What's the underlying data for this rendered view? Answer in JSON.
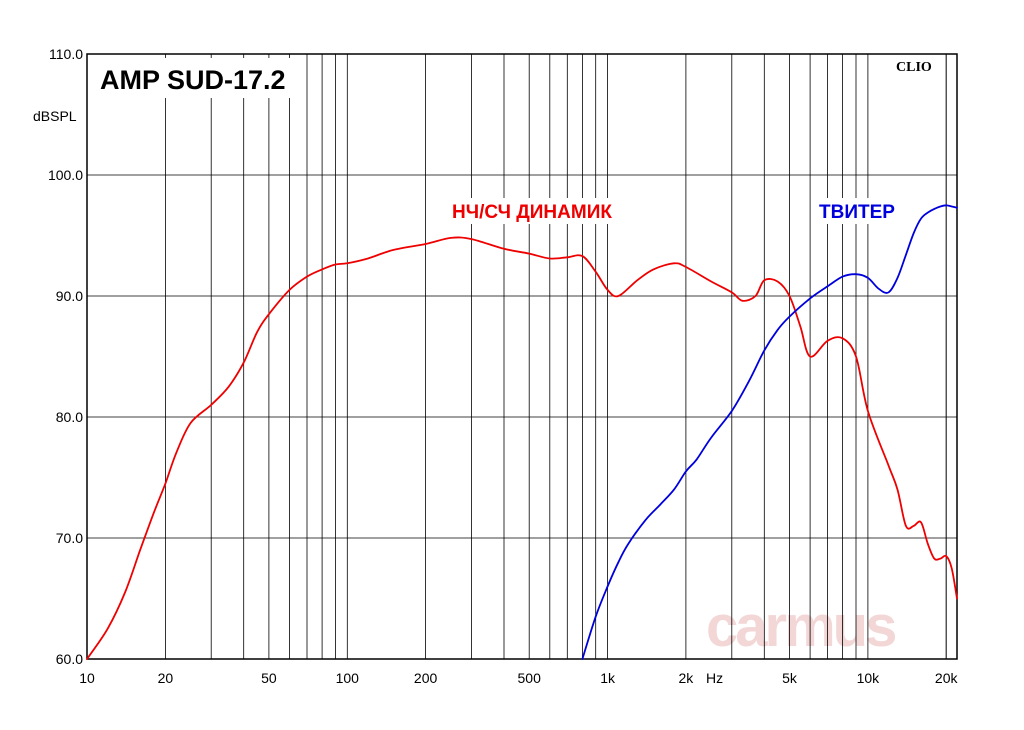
{
  "chart_data": {
    "type": "line",
    "title": "AMP SUD-17.2",
    "ylabel": "dBSPL",
    "xlabel": "Hz",
    "corner_label": "CLIO",
    "watermark": "carmus",
    "x_scale": "log",
    "xlim": [
      10,
      22000
    ],
    "ylim": [
      60,
      110
    ],
    "grid": true,
    "y_ticks": [
      60,
      70,
      80,
      90,
      100,
      110
    ],
    "y_tick_labels": [
      "60.0",
      "70.0",
      "80.0",
      "90.0",
      "100.0",
      "110.0"
    ],
    "x_ticks": [
      10,
      20,
      50,
      100,
      200,
      500,
      1000,
      2000,
      5000,
      10000,
      20000
    ],
    "x_tick_labels": [
      "10",
      "20",
      "50",
      "100",
      "200",
      "500",
      "1k",
      "2k",
      "5k",
      "10k",
      "20k"
    ],
    "colors": {
      "woofer": "#ee0000",
      "tweeter": "#0000dd",
      "grid": "#000000",
      "watermark": "#f3d6d6"
    },
    "series": [
      {
        "name": "НЧ/СЧ ДИНАМИК",
        "color": "#ee0000",
        "x": [
          10,
          12,
          14,
          16,
          18,
          20,
          22,
          25,
          30,
          35,
          40,
          45,
          50,
          60,
          70,
          80,
          90,
          100,
          120,
          150,
          200,
          250,
          300,
          400,
          500,
          600,
          700,
          800,
          900,
          1000,
          1100,
          1300,
          1500,
          1800,
          2000,
          2500,
          3000,
          3300,
          3700,
          4000,
          4500,
          5000,
          5500,
          6000,
          7000,
          8000,
          9000,
          10000,
          12000,
          13000,
          14000,
          15000,
          16000,
          17000,
          18000,
          19000,
          20000,
          21000,
          22000
        ],
        "y": [
          60,
          62.5,
          65.5,
          69,
          72,
          74.5,
          77,
          79.5,
          81,
          82.5,
          84.5,
          87,
          88.5,
          90.5,
          91.6,
          92.2,
          92.6,
          92.7,
          93.1,
          93.8,
          94.3,
          94.8,
          94.7,
          93.9,
          93.5,
          93.1,
          93.2,
          93.3,
          92.0,
          90.5,
          90.0,
          91.3,
          92.2,
          92.7,
          92.4,
          91.2,
          90.3,
          89.6,
          90.0,
          91.3,
          91.2,
          90.0,
          87.5,
          85.0,
          86.3,
          86.5,
          85.0,
          80.5,
          76.0,
          74.0,
          71.0,
          71.0,
          71.3,
          69.5,
          68.3,
          68.3,
          68.5,
          67.5,
          65.0
        ]
      },
      {
        "name": "ТВИТЕР",
        "color": "#0000dd",
        "x": [
          800,
          900,
          1000,
          1100,
          1200,
          1400,
          1600,
          1800,
          2000,
          2200,
          2500,
          3000,
          3500,
          4000,
          4500,
          5000,
          6000,
          7000,
          8000,
          9000,
          10000,
          11000,
          12000,
          13000,
          14000,
          15000,
          16000,
          17000,
          18000,
          19000,
          20000,
          21000,
          22000
        ],
        "y": [
          60,
          63.5,
          66,
          68,
          69.5,
          71.5,
          72.8,
          74,
          75.5,
          76.5,
          78.3,
          80.5,
          83.0,
          85.5,
          87.2,
          88.3,
          89.8,
          90.8,
          91.6,
          91.8,
          91.5,
          90.6,
          90.3,
          91.5,
          93.4,
          95.2,
          96.4,
          96.9,
          97.2,
          97.4,
          97.5,
          97.4,
          97.3
        ]
      }
    ]
  }
}
